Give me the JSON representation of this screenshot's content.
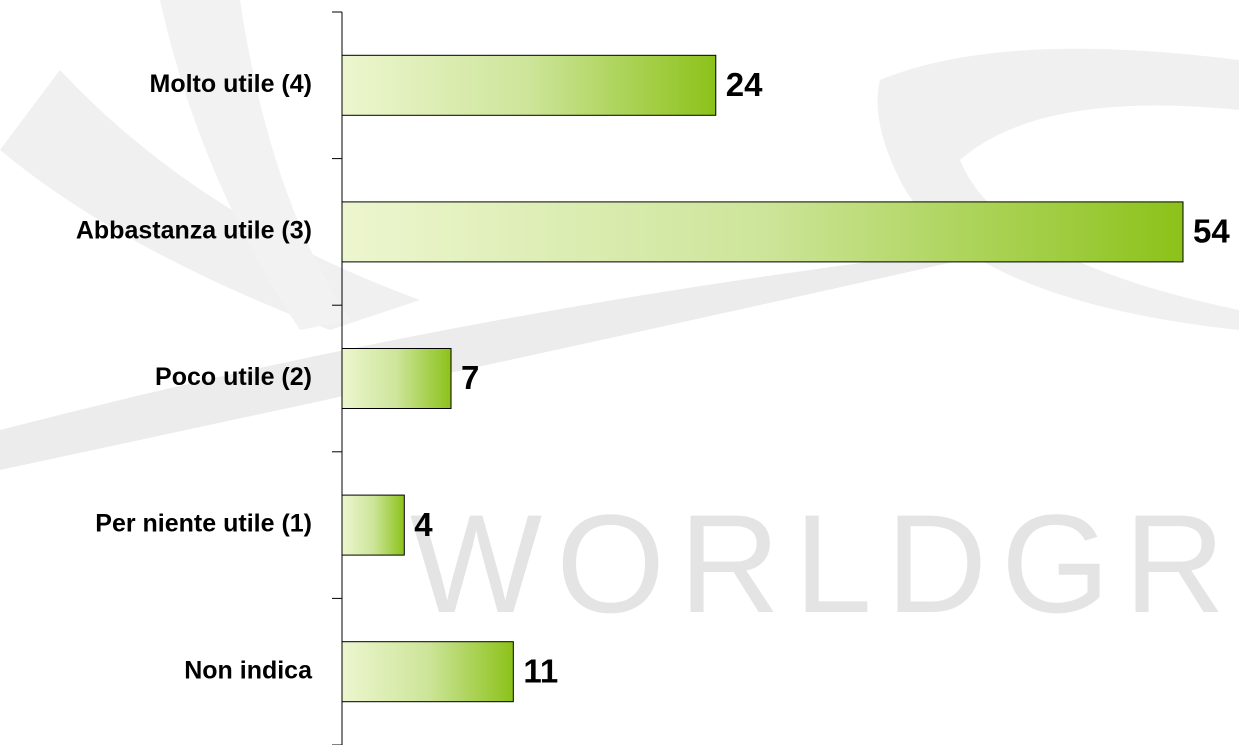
{
  "chart_data": {
    "type": "bar",
    "orientation": "horizontal",
    "watermark": "WORLDGROU",
    "categories": [
      "Molto utile (4)",
      "Abbastanza utile (3)",
      "Poco utile (2)",
      "Per niente utile (1)",
      "Non indica"
    ],
    "values": [
      24,
      54,
      7,
      4,
      11
    ],
    "color": "#8cc21a"
  }
}
